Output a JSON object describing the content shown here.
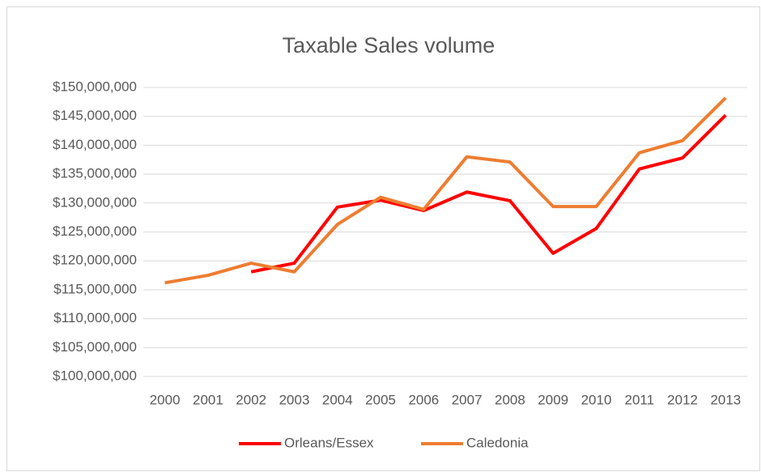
{
  "chart_data": {
    "type": "line",
    "title": "Taxable Sales volume",
    "categories": [
      "2000",
      "2001",
      "2002",
      "2003",
      "2004",
      "2005",
      "2006",
      "2007",
      "2008",
      "2009",
      "2010",
      "2011",
      "2012",
      "2013"
    ],
    "series": [
      {
        "name": "Orleans/Essex",
        "color": "#ff0000",
        "values": [
          null,
          null,
          118100000,
          119600000,
          129300000,
          130500000,
          128700000,
          131900000,
          130400000,
          121300000,
          125600000,
          135900000,
          137800000,
          145200000
        ]
      },
      {
        "name": "Caledonia",
        "color": "#ed7d31",
        "values": [
          116200000,
          117500000,
          119600000,
          118100000,
          126300000,
          131000000,
          128900000,
          138000000,
          137100000,
          129400000,
          129400000,
          138700000,
          140800000,
          148200000
        ]
      }
    ],
    "ylim": [
      100000000,
      150000000
    ],
    "yticks": [
      {
        "value": 100000000,
        "label": "$100,000,000"
      },
      {
        "value": 105000000,
        "label": "$105,000,000"
      },
      {
        "value": 110000000,
        "label": "$110,000,000"
      },
      {
        "value": 115000000,
        "label": "$115,000,000"
      },
      {
        "value": 120000000,
        "label": "$120,000,000"
      },
      {
        "value": 125000000,
        "label": "$125,000,000"
      },
      {
        "value": 130000000,
        "label": "$130,000,000"
      },
      {
        "value": 135000000,
        "label": "$135,000,000"
      },
      {
        "value": 140000000,
        "label": "$140,000,000"
      },
      {
        "value": 145000000,
        "label": "$145,000,000"
      },
      {
        "value": 150000000,
        "label": "$150,000,000"
      }
    ],
    "grid": true,
    "legend": "bottom"
  }
}
